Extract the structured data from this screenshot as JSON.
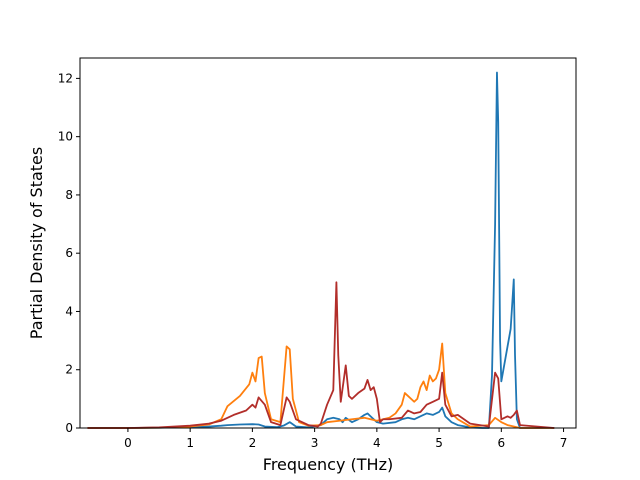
{
  "chart_data": {
    "type": "line",
    "xlabel": "Frequency (THz)",
    "ylabel": "Partial Density of States",
    "xlim": [
      -0.77,
      7.2
    ],
    "ylim": [
      0,
      12.7
    ],
    "xticks": [
      0,
      1,
      2,
      3,
      4,
      5,
      6,
      7
    ],
    "yticks": [
      0,
      2,
      4,
      6,
      8,
      10,
      12
    ],
    "grid": false,
    "series": [
      {
        "color": "#1f77b4",
        "x": [
          -0.65,
          0,
          0.5,
          1.0,
          1.3,
          1.5,
          1.6,
          1.8,
          2.0,
          2.1,
          2.2,
          2.4,
          2.5,
          2.6,
          2.7,
          2.9,
          3.1,
          3.2,
          3.3,
          3.4,
          3.45,
          3.5,
          3.6,
          3.7,
          3.8,
          3.85,
          3.9,
          4.0,
          4.1,
          4.3,
          4.4,
          4.5,
          4.6,
          4.7,
          4.8,
          4.9,
          5.0,
          5.05,
          5.1,
          5.2,
          5.3,
          5.5,
          5.7,
          5.8,
          5.85,
          5.9,
          5.93,
          5.95,
          5.98,
          6.0,
          6.05,
          6.1,
          6.15,
          6.2,
          6.22,
          6.25,
          6.3,
          6.5,
          6.85
        ],
        "y": [
          0,
          0,
          0.01,
          0.03,
          0.05,
          0.08,
          0.1,
          0.12,
          0.13,
          0.12,
          0.05,
          0.03,
          0.08,
          0.2,
          0.05,
          0.02,
          0.1,
          0.3,
          0.35,
          0.3,
          0.2,
          0.35,
          0.2,
          0.3,
          0.45,
          0.5,
          0.4,
          0.2,
          0.15,
          0.2,
          0.3,
          0.35,
          0.3,
          0.4,
          0.5,
          0.45,
          0.55,
          0.7,
          0.4,
          0.2,
          0.1,
          0.02,
          0,
          0,
          1.8,
          7.0,
          12.2,
          10.5,
          3.0,
          1.6,
          2.2,
          2.8,
          3.4,
          5.1,
          2.5,
          0.3,
          0,
          0,
          0
        ]
      },
      {
        "color": "#ff7f0e",
        "x": [
          -0.65,
          0,
          0.5,
          1.0,
          1.3,
          1.5,
          1.6,
          1.8,
          1.95,
          2.0,
          2.05,
          2.1,
          2.15,
          2.2,
          2.3,
          2.45,
          2.55,
          2.6,
          2.65,
          2.75,
          2.9,
          3.1,
          3.2,
          3.4,
          3.6,
          3.8,
          4.0,
          4.1,
          4.2,
          4.3,
          4.4,
          4.45,
          4.5,
          4.6,
          4.65,
          4.7,
          4.75,
          4.8,
          4.85,
          4.9,
          4.95,
          5.0,
          5.05,
          5.1,
          5.2,
          5.3,
          5.5,
          5.8,
          5.9,
          6.0,
          6.1,
          6.2,
          6.3,
          6.85
        ],
        "y": [
          0,
          0,
          0.01,
          0.05,
          0.12,
          0.3,
          0.75,
          1.1,
          1.5,
          1.9,
          1.6,
          2.4,
          2.45,
          1.2,
          0.3,
          0.2,
          2.8,
          2.7,
          1.0,
          0.2,
          0.08,
          0.1,
          0.2,
          0.25,
          0.3,
          0.35,
          0.25,
          0.3,
          0.35,
          0.5,
          0.8,
          1.2,
          1.1,
          0.9,
          1.0,
          1.4,
          1.6,
          1.3,
          1.8,
          1.6,
          1.7,
          2.0,
          2.9,
          1.2,
          0.5,
          0.3,
          0.05,
          0.1,
          0.35,
          0.2,
          0.1,
          0.05,
          0,
          0
        ]
      },
      {
        "color": "#b22e2a",
        "x": [
          -0.65,
          0,
          0.5,
          1.0,
          1.3,
          1.5,
          1.7,
          1.9,
          2.0,
          2.05,
          2.1,
          2.2,
          2.3,
          2.45,
          2.55,
          2.6,
          2.7,
          2.9,
          3.05,
          3.1,
          3.2,
          3.3,
          3.35,
          3.38,
          3.42,
          3.5,
          3.55,
          3.6,
          3.7,
          3.8,
          3.85,
          3.9,
          3.95,
          4.0,
          4.05,
          4.1,
          4.2,
          4.4,
          4.5,
          4.6,
          4.7,
          4.8,
          4.9,
          5.0,
          5.05,
          5.1,
          5.2,
          5.3,
          5.5,
          5.8,
          5.9,
          5.95,
          6.0,
          6.1,
          6.15,
          6.2,
          6.25,
          6.3,
          6.85
        ],
        "y": [
          0,
          0,
          0.02,
          0.08,
          0.15,
          0.25,
          0.45,
          0.6,
          0.8,
          0.7,
          1.05,
          0.8,
          0.2,
          0.1,
          1.05,
          0.9,
          0.3,
          0.1,
          0.05,
          0.15,
          0.8,
          1.3,
          5.0,
          2.5,
          0.9,
          2.15,
          1.1,
          1.0,
          1.2,
          1.35,
          1.65,
          1.3,
          1.4,
          1.0,
          0.2,
          0.3,
          0.3,
          0.35,
          0.6,
          0.5,
          0.55,
          0.8,
          0.9,
          1.0,
          1.9,
          0.8,
          0.4,
          0.45,
          0.15,
          0.05,
          1.9,
          1.7,
          0.3,
          0.4,
          0.35,
          0.45,
          0.6,
          0.1,
          0
        ]
      }
    ]
  }
}
